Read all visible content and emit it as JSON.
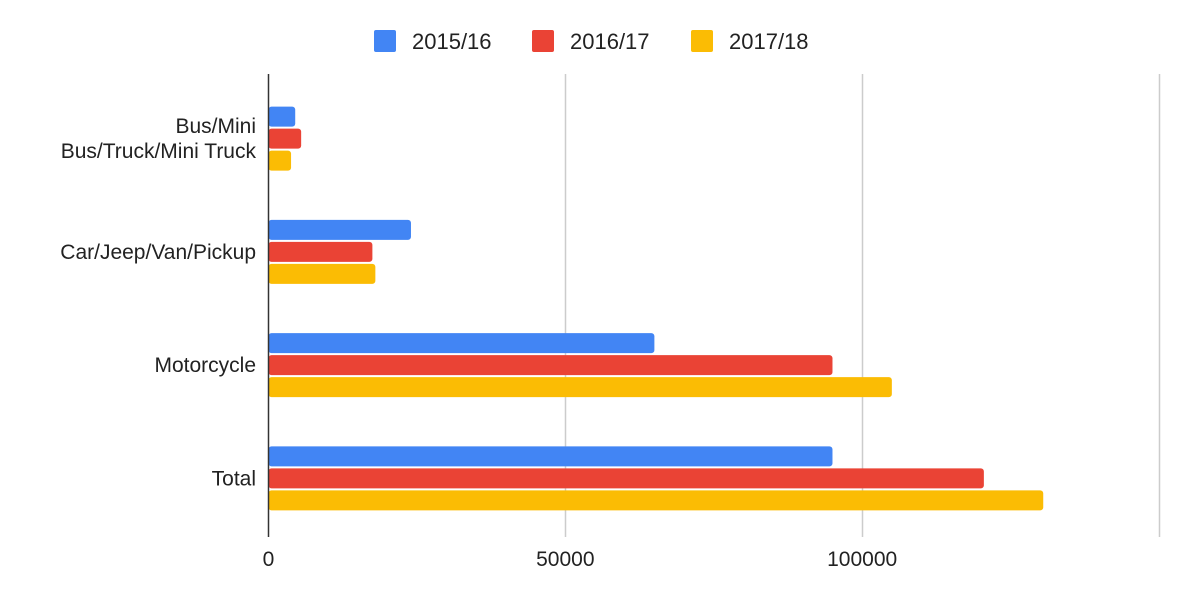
{
  "chart_data": {
    "type": "bar",
    "orientation": "horizontal",
    "categories": [
      [
        "Bus/Mini",
        "Bus/Truck/Mini Truck"
      ],
      [
        "Car/Jeep/Van/Pickup"
      ],
      [
        "Motorcycle"
      ],
      [
        "Total"
      ]
    ],
    "series": [
      {
        "name": "2015/16",
        "color": "#4285f4",
        "values": [
          4500,
          24000,
          65000,
          95000
        ]
      },
      {
        "name": "2016/17",
        "color": "#ea4335",
        "values": [
          5500,
          17500,
          95000,
          120500
        ]
      },
      {
        "name": "2017/18",
        "color": "#fbbc04",
        "values": [
          3800,
          18000,
          105000,
          130500
        ]
      }
    ],
    "xlim": [
      0,
      150000
    ],
    "xticks": [
      0,
      50000,
      100000
    ],
    "grid": true,
    "legend_position": "top"
  }
}
